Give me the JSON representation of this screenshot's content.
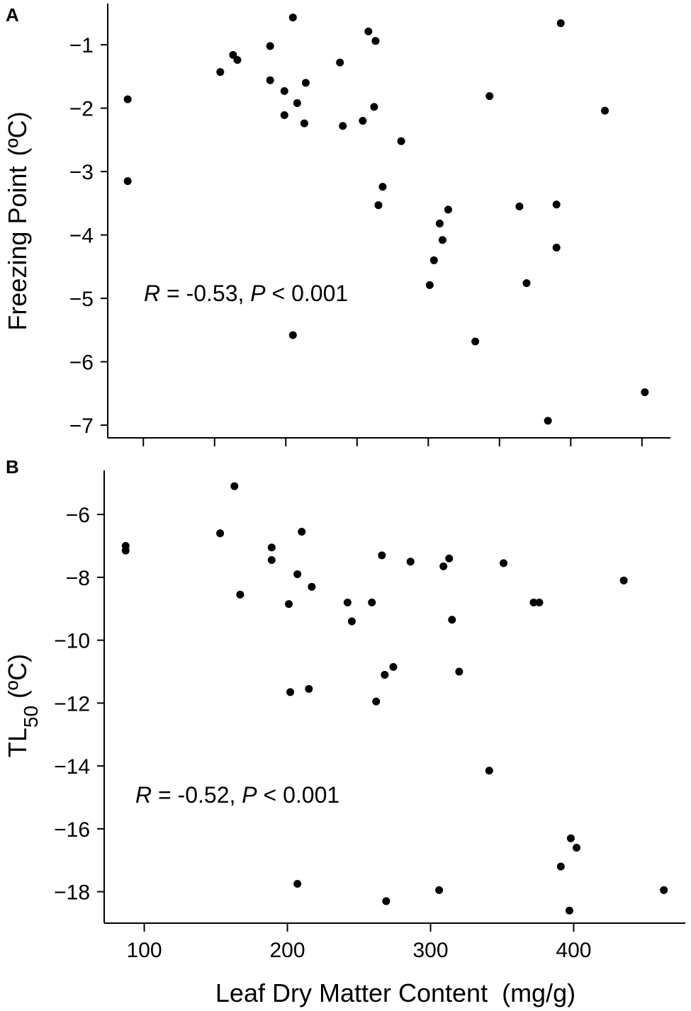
{
  "chart_data": [
    {
      "type": "scatter",
      "panel_label": "A",
      "xlabel": "",
      "ylabel": {
        "main": "Freezing Point",
        "unit": "(ºC)"
      },
      "xlim": [
        75,
        470
      ],
      "ylim": [
        -7.2,
        -0.35
      ],
      "xticks": [
        100,
        150,
        200,
        250,
        300,
        350,
        400,
        450
      ],
      "yticks": [
        -7,
        -6,
        -5,
        -4,
        -3,
        -2,
        -1
      ],
      "ytick_labels": [
        "−7",
        "−6",
        "−5",
        "−4",
        "−3",
        "−2",
        "−1"
      ],
      "annotation": {
        "r_label": "R",
        "r_text": " = -0.53, ",
        "p_label": "P",
        "p_text": " < 0.001"
      },
      "points": [
        {
          "x": 89,
          "y": -1.86
        },
        {
          "x": 89,
          "y": -3.15
        },
        {
          "x": 154,
          "y": -1.43
        },
        {
          "x": 163,
          "y": -1.16
        },
        {
          "x": 166,
          "y": -1.24
        },
        {
          "x": 189,
          "y": -1.02
        },
        {
          "x": 189,
          "y": -1.56
        },
        {
          "x": 199,
          "y": -1.73
        },
        {
          "x": 199,
          "y": -2.11
        },
        {
          "x": 205,
          "y": -0.57
        },
        {
          "x": 205,
          "y": -5.58
        },
        {
          "x": 208,
          "y": -1.92
        },
        {
          "x": 213,
          "y": -2.24
        },
        {
          "x": 214,
          "y": -1.6
        },
        {
          "x": 238,
          "y": -1.28
        },
        {
          "x": 240,
          "y": -2.28
        },
        {
          "x": 254,
          "y": -2.2
        },
        {
          "x": 258,
          "y": -0.79
        },
        {
          "x": 262,
          "y": -1.98
        },
        {
          "x": 263,
          "y": -0.94
        },
        {
          "x": 265,
          "y": -3.53
        },
        {
          "x": 268,
          "y": -3.24
        },
        {
          "x": 281,
          "y": -2.52
        },
        {
          "x": 301,
          "y": -4.79
        },
        {
          "x": 304,
          "y": -4.4
        },
        {
          "x": 308,
          "y": -3.82
        },
        {
          "x": 310,
          "y": -4.08
        },
        {
          "x": 314,
          "y": -3.6
        },
        {
          "x": 333,
          "y": -5.68
        },
        {
          "x": 343,
          "y": -1.81
        },
        {
          "x": 364,
          "y": -3.55
        },
        {
          "x": 369,
          "y": -4.76
        },
        {
          "x": 384,
          "y": -6.93
        },
        {
          "x": 390,
          "y": -3.52
        },
        {
          "x": 390,
          "y": -4.2
        },
        {
          "x": 393,
          "y": -0.66
        },
        {
          "x": 424,
          "y": -2.04
        },
        {
          "x": 452,
          "y": -6.48
        }
      ]
    },
    {
      "type": "scatter",
      "panel_label": "B",
      "xlabel": "Leaf Dry Matter Content  (mg/g)",
      "ylabel": {
        "main": "TL",
        "sub": "50",
        "unit": " (ºC)"
      },
      "xlim": [
        72,
        478
      ],
      "ylim": [
        -19.0,
        -4.6
      ],
      "xticks": [
        100,
        200,
        300,
        400
      ],
      "xtick_labels": [
        "100",
        "200",
        "300",
        "400"
      ],
      "yticks": [
        -18,
        -16,
        -14,
        -12,
        -10,
        -8,
        -6
      ],
      "ytick_labels": [
        "−18",
        "−16",
        "−14",
        "−12",
        "−10",
        "−8",
        "−6"
      ],
      "annotation": {
        "r_label": "R",
        "r_text": " = -0.52, ",
        "p_label": "P",
        "p_text": " < 0.001"
      },
      "points": [
        {
          "x": 87,
          "y": -7.0
        },
        {
          "x": 87,
          "y": -7.15
        },
        {
          "x": 153,
          "y": -6.6
        },
        {
          "x": 163,
          "y": -5.1
        },
        {
          "x": 167,
          "y": -8.55
        },
        {
          "x": 189,
          "y": -7.05
        },
        {
          "x": 189,
          "y": -7.45
        },
        {
          "x": 201,
          "y": -8.85
        },
        {
          "x": 202,
          "y": -11.65
        },
        {
          "x": 207,
          "y": -7.9
        },
        {
          "x": 207,
          "y": -17.75
        },
        {
          "x": 210,
          "y": -6.55
        },
        {
          "x": 215,
          "y": -11.55
        },
        {
          "x": 217,
          "y": -8.3
        },
        {
          "x": 242,
          "y": -8.8
        },
        {
          "x": 245,
          "y": -9.4
        },
        {
          "x": 259,
          "y": -8.8
        },
        {
          "x": 262,
          "y": -11.95
        },
        {
          "x": 266,
          "y": -7.3
        },
        {
          "x": 268,
          "y": -11.1
        },
        {
          "x": 269,
          "y": -18.3
        },
        {
          "x": 274,
          "y": -10.85
        },
        {
          "x": 286,
          "y": -7.5
        },
        {
          "x": 306,
          "y": -17.95
        },
        {
          "x": 309,
          "y": -7.65
        },
        {
          "x": 313,
          "y": -7.4
        },
        {
          "x": 315,
          "y": -9.35
        },
        {
          "x": 320,
          "y": -11.0
        },
        {
          "x": 341,
          "y": -14.15
        },
        {
          "x": 351,
          "y": -7.55
        },
        {
          "x": 372,
          "y": -8.8
        },
        {
          "x": 376,
          "y": -8.8
        },
        {
          "x": 391,
          "y": -17.2
        },
        {
          "x": 397,
          "y": -18.6
        },
        {
          "x": 398,
          "y": -16.3
        },
        {
          "x": 402,
          "y": -16.6
        },
        {
          "x": 435,
          "y": -8.1
        },
        {
          "x": 463,
          "y": -17.95
        }
      ]
    }
  ]
}
